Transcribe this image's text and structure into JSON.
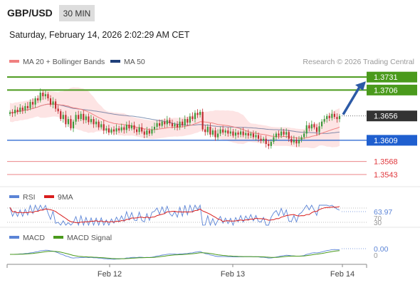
{
  "header": {
    "symbol": "GBP/USD",
    "timeframe": "30 MIN",
    "datetime": "Saturday, February 14, 2026 2:02:29 AM CET",
    "source": "Research © 2026 Trading Central"
  },
  "legend": {
    "ma20": "MA 20 + Bollinger Bands",
    "ma50": "MA 50",
    "rsi": "RSI",
    "rsi_ma": "9MA",
    "macd": "MACD",
    "macd_signal": "MACD Signal"
  },
  "colors": {
    "ma20": "#f08080",
    "ma50": "#1f3f7a",
    "bollinger_fill": "#fde4e4",
    "bull_candle": "#3a9a3a",
    "bear_candle": "#c0292e",
    "resistance": "#4a9a1c",
    "support": "#1f5fcf",
    "pivot_red": "#e0393e",
    "rsi": "#5b84d6",
    "rsi_ma": "#d81e1e",
    "macd": "#5b84d6",
    "macd_signal": "#4a9a1c",
    "arrow": "#2c5aa6",
    "last_price": "#333333"
  },
  "chart_data": {
    "type": "candlestick",
    "x_axis": {
      "ticks": [
        "Feb 12",
        "Feb 13",
        "Feb 14"
      ]
    },
    "price": {
      "ylim": [
        1.3525,
        1.3745
      ],
      "levels": [
        {
          "value": 1.3731,
          "label": "1.3731",
          "kind": "resistance"
        },
        {
          "value": 1.3706,
          "label": "1.3706",
          "kind": "resistance"
        },
        {
          "value": 1.3656,
          "label": "1.3656",
          "kind": "last"
        },
        {
          "value": 1.3609,
          "label": "1.3609",
          "kind": "support"
        },
        {
          "value": 1.3568,
          "label": "1.3568",
          "kind": "pivot"
        },
        {
          "value": 1.3543,
          "label": "1.3543",
          "kind": "pivot"
        }
      ],
      "closes": [
        1.3663,
        1.3661,
        1.3668,
        1.3664,
        1.3672,
        1.3667,
        1.3675,
        1.3671,
        1.3683,
        1.3678,
        1.369,
        1.3686,
        1.3701,
        1.3694,
        1.3698,
        1.369,
        1.3678,
        1.3684,
        1.367,
        1.3665,
        1.365,
        1.3658,
        1.364,
        1.365,
        1.3632,
        1.3645,
        1.3658,
        1.365,
        1.366,
        1.3648,
        1.3655,
        1.3644,
        1.365,
        1.364,
        1.3645,
        1.3634,
        1.364,
        1.3628,
        1.3632,
        1.3624,
        1.363,
        1.3626,
        1.3632,
        1.3628,
        1.3634,
        1.3629,
        1.3639,
        1.3632,
        1.3638,
        1.363,
        1.3625,
        1.3634,
        1.3626,
        1.362,
        1.3628,
        1.3622,
        1.363,
        1.3635,
        1.3642,
        1.3637,
        1.3645,
        1.364,
        1.3648,
        1.3642,
        1.3636,
        1.364,
        1.3634,
        1.3645,
        1.3638,
        1.365,
        1.3643,
        1.3655,
        1.365,
        1.3662,
        1.3658,
        1.3664,
        1.363,
        1.3625,
        1.3635,
        1.362,
        1.3628,
        1.3615,
        1.3622,
        1.363,
        1.3624,
        1.3628,
        1.3622,
        1.3626,
        1.3618,
        1.3624,
        1.362,
        1.3626,
        1.3619,
        1.3623,
        1.3618,
        1.3622,
        1.3615,
        1.3619,
        1.3612,
        1.3608,
        1.3612,
        1.3602,
        1.3598,
        1.3606,
        1.3615,
        1.3622,
        1.3618,
        1.3626,
        1.362,
        1.3625,
        1.3612,
        1.3605,
        1.361,
        1.3603,
        1.361,
        1.3615,
        1.3622,
        1.3638,
        1.3632,
        1.364,
        1.3634,
        1.3625,
        1.3636,
        1.3645,
        1.365,
        1.3656,
        1.3652,
        1.366,
        1.3654,
        1.365,
        1.3656
      ]
    },
    "rsi": {
      "last": 63.97,
      "ticks": [
        70,
        30
      ],
      "last_label": "63.97",
      "tick_labels": [
        "70",
        "30"
      ]
    },
    "macd": {
      "last": 0.0,
      "last_label": "0.00",
      "zero_label": "0"
    }
  }
}
